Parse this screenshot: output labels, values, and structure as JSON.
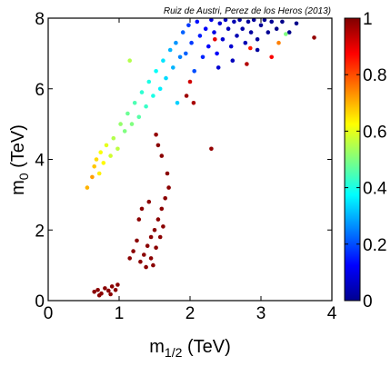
{
  "chart_data": {
    "type": "scatter",
    "annotation": "Ruiz de Austri, Perez de los Heros (2013)",
    "xlabel": {
      "main": "m",
      "sub": "1/2",
      "unit": " (TeV)"
    },
    "ylabel": {
      "main": "m",
      "sub": "0",
      "unit": " (TeV)"
    },
    "xlim": [
      0,
      4
    ],
    "ylim": [
      0,
      8
    ],
    "xticks": [
      "0",
      "1",
      "2",
      "3",
      "4"
    ],
    "yticks": [
      "0",
      "2",
      "4",
      "6",
      "8"
    ],
    "colorbar": {
      "colormap": "jet",
      "range": [
        0,
        1
      ],
      "ticks": [
        "0",
        "0.2",
        "0.4",
        "0.6",
        "0.8",
        "1"
      ]
    },
    "grid": false,
    "points": [
      {
        "x": 0.55,
        "y": 3.2,
        "c": 0.7
      },
      {
        "x": 0.62,
        "y": 3.5,
        "c": 0.72
      },
      {
        "x": 0.65,
        "y": 3.8,
        "c": 0.68
      },
      {
        "x": 0.68,
        "y": 4.0,
        "c": 0.66
      },
      {
        "x": 0.72,
        "y": 3.6,
        "c": 0.64
      },
      {
        "x": 0.74,
        "y": 4.2,
        "c": 0.62
      },
      {
        "x": 0.78,
        "y": 3.9,
        "c": 0.63
      },
      {
        "x": 0.82,
        "y": 4.4,
        "c": 0.6
      },
      {
        "x": 0.88,
        "y": 4.1,
        "c": 0.58
      },
      {
        "x": 0.92,
        "y": 4.6,
        "c": 0.55
      },
      {
        "x": 0.98,
        "y": 4.3,
        "c": 0.56
      },
      {
        "x": 1.02,
        "y": 5.0,
        "c": 0.52
      },
      {
        "x": 1.08,
        "y": 4.8,
        "c": 0.5
      },
      {
        "x": 1.12,
        "y": 5.3,
        "c": 0.48
      },
      {
        "x": 1.18,
        "y": 5.0,
        "c": 0.5
      },
      {
        "x": 1.15,
        "y": 6.8,
        "c": 0.55
      },
      {
        "x": 1.22,
        "y": 5.6,
        "c": 0.45
      },
      {
        "x": 1.28,
        "y": 5.2,
        "c": 0.46
      },
      {
        "x": 1.32,
        "y": 5.9,
        "c": 0.42
      },
      {
        "x": 1.38,
        "y": 5.5,
        "c": 0.43
      },
      {
        "x": 1.42,
        "y": 6.2,
        "c": 0.4
      },
      {
        "x": 1.48,
        "y": 5.8,
        "c": 0.4
      },
      {
        "x": 1.52,
        "y": 6.5,
        "c": 0.38
      },
      {
        "x": 1.58,
        "y": 6.0,
        "c": 0.36
      },
      {
        "x": 1.62,
        "y": 6.8,
        "c": 0.35
      },
      {
        "x": 1.66,
        "y": 6.3,
        "c": 0.34
      },
      {
        "x": 1.72,
        "y": 7.1,
        "c": 0.3
      },
      {
        "x": 1.76,
        "y": 6.6,
        "c": 0.3
      },
      {
        "x": 1.8,
        "y": 7.3,
        "c": 0.27
      },
      {
        "x": 1.82,
        "y": 5.6,
        "c": 0.33
      },
      {
        "x": 1.86,
        "y": 6.9,
        "c": 0.25
      },
      {
        "x": 1.9,
        "y": 7.6,
        "c": 0.22
      },
      {
        "x": 1.94,
        "y": 7.0,
        "c": 0.22
      },
      {
        "x": 1.98,
        "y": 7.8,
        "c": 0.18
      },
      {
        "x": 2.02,
        "y": 7.3,
        "c": 0.18
      },
      {
        "x": 2.06,
        "y": 6.5,
        "c": 0.2
      },
      {
        "x": 2.1,
        "y": 7.9,
        "c": 0.14
      },
      {
        "x": 2.14,
        "y": 7.5,
        "c": 0.15
      },
      {
        "x": 2.18,
        "y": 6.9,
        "c": 0.16
      },
      {
        "x": 2.22,
        "y": 7.7,
        "c": 0.12
      },
      {
        "x": 2.26,
        "y": 7.2,
        "c": 0.12
      },
      {
        "x": 2.3,
        "y": 7.95,
        "c": 0.1
      },
      {
        "x": 2.34,
        "y": 7.6,
        "c": 0.1
      },
      {
        "x": 2.38,
        "y": 7.0,
        "c": 0.12
      },
      {
        "x": 2.42,
        "y": 7.85,
        "c": 0.08
      },
      {
        "x": 2.46,
        "y": 7.4,
        "c": 0.08
      },
      {
        "x": 2.5,
        "y": 7.95,
        "c": 0.07
      },
      {
        "x": 2.54,
        "y": 7.7,
        "c": 0.06
      },
      {
        "x": 2.58,
        "y": 7.2,
        "c": 0.08
      },
      {
        "x": 2.62,
        "y": 7.9,
        "c": 0.05
      },
      {
        "x": 2.66,
        "y": 7.5,
        "c": 0.05
      },
      {
        "x": 2.7,
        "y": 7.95,
        "c": 0.04
      },
      {
        "x": 2.74,
        "y": 7.7,
        "c": 0.04
      },
      {
        "x": 2.78,
        "y": 7.3,
        "c": 0.05
      },
      {
        "x": 2.82,
        "y": 7.9,
        "c": 0.03
      },
      {
        "x": 2.86,
        "y": 7.6,
        "c": 0.03
      },
      {
        "x": 2.9,
        "y": 7.95,
        "c": 0.03
      },
      {
        "x": 2.95,
        "y": 7.4,
        "c": 0.03
      },
      {
        "x": 3.0,
        "y": 7.8,
        "c": 0.02
      },
      {
        "x": 3.05,
        "y": 7.95,
        "c": 0.02
      },
      {
        "x": 3.1,
        "y": 7.6,
        "c": 0.02
      },
      {
        "x": 3.15,
        "y": 7.9,
        "c": 0.02
      },
      {
        "x": 3.22,
        "y": 7.7,
        "c": 0.01
      },
      {
        "x": 3.3,
        "y": 7.9,
        "c": 0.01
      },
      {
        "x": 3.4,
        "y": 7.6,
        "c": 0.01
      },
      {
        "x": 3.5,
        "y": 7.85,
        "c": 0.01
      },
      {
        "x": 2.95,
        "y": 7.1,
        "c": 0.03
      },
      {
        "x": 2.4,
        "y": 6.6,
        "c": 0.08
      },
      {
        "x": 2.6,
        "y": 6.8,
        "c": 0.06
      },
      {
        "x": 2.8,
        "y": 6.7,
        "c": 0.95
      },
      {
        "x": 2.85,
        "y": 7.15,
        "c": 0.85
      },
      {
        "x": 3.15,
        "y": 6.9,
        "c": 0.88
      },
      {
        "x": 3.75,
        "y": 7.45,
        "c": 0.98
      },
      {
        "x": 2.35,
        "y": 7.4,
        "c": 0.9
      },
      {
        "x": 3.35,
        "y": 7.55,
        "c": 0.5
      },
      {
        "x": 3.25,
        "y": 7.3,
        "c": 0.75
      },
      {
        "x": 2.0,
        "y": 6.2,
        "c": 0.92
      },
      {
        "x": 2.05,
        "y": 5.6,
        "c": 0.96
      },
      {
        "x": 1.95,
        "y": 5.8,
        "c": 0.97
      },
      {
        "x": 2.3,
        "y": 4.3,
        "c": 0.98
      },
      {
        "x": 1.52,
        "y": 4.7,
        "c": 0.98
      },
      {
        "x": 1.55,
        "y": 4.4,
        "c": 0.99
      },
      {
        "x": 1.6,
        "y": 4.1,
        "c": 0.99
      },
      {
        "x": 1.68,
        "y": 3.6,
        "c": 0.99
      },
      {
        "x": 1.7,
        "y": 3.2,
        "c": 0.99
      },
      {
        "x": 1.65,
        "y": 2.9,
        "c": 0.99
      },
      {
        "x": 1.6,
        "y": 2.6,
        "c": 0.99
      },
      {
        "x": 1.55,
        "y": 2.3,
        "c": 0.99
      },
      {
        "x": 1.5,
        "y": 2.0,
        "c": 0.99
      },
      {
        "x": 1.45,
        "y": 1.8,
        "c": 0.99
      },
      {
        "x": 1.4,
        "y": 1.55,
        "c": 0.99
      },
      {
        "x": 1.35,
        "y": 1.3,
        "c": 0.99
      },
      {
        "x": 1.3,
        "y": 1.1,
        "c": 0.99
      },
      {
        "x": 1.38,
        "y": 0.95,
        "c": 0.99
      },
      {
        "x": 1.45,
        "y": 1.2,
        "c": 0.99
      },
      {
        "x": 1.52,
        "y": 1.5,
        "c": 0.99
      },
      {
        "x": 1.58,
        "y": 1.8,
        "c": 0.99
      },
      {
        "x": 1.62,
        "y": 2.1,
        "c": 0.99
      },
      {
        "x": 1.28,
        "y": 2.3,
        "c": 0.99
      },
      {
        "x": 1.25,
        "y": 1.7,
        "c": 0.99
      },
      {
        "x": 1.2,
        "y": 1.4,
        "c": 0.99
      },
      {
        "x": 1.15,
        "y": 1.2,
        "c": 0.99
      },
      {
        "x": 1.32,
        "y": 2.6,
        "c": 0.99
      },
      {
        "x": 1.42,
        "y": 2.8,
        "c": 0.99
      },
      {
        "x": 1.48,
        "y": 1.0,
        "c": 0.99
      },
      {
        "x": 0.65,
        "y": 0.25,
        "c": 0.99
      },
      {
        "x": 0.7,
        "y": 0.3,
        "c": 0.99
      },
      {
        "x": 0.75,
        "y": 0.2,
        "c": 0.99
      },
      {
        "x": 0.8,
        "y": 0.35,
        "c": 0.99
      },
      {
        "x": 0.85,
        "y": 0.28,
        "c": 0.99
      },
      {
        "x": 0.9,
        "y": 0.4,
        "c": 0.99
      },
      {
        "x": 0.95,
        "y": 0.3,
        "c": 0.99
      },
      {
        "x": 0.72,
        "y": 0.15,
        "c": 0.99
      },
      {
        "x": 0.88,
        "y": 0.18,
        "c": 0.99
      },
      {
        "x": 0.98,
        "y": 0.45,
        "c": 0.99
      }
    ]
  }
}
